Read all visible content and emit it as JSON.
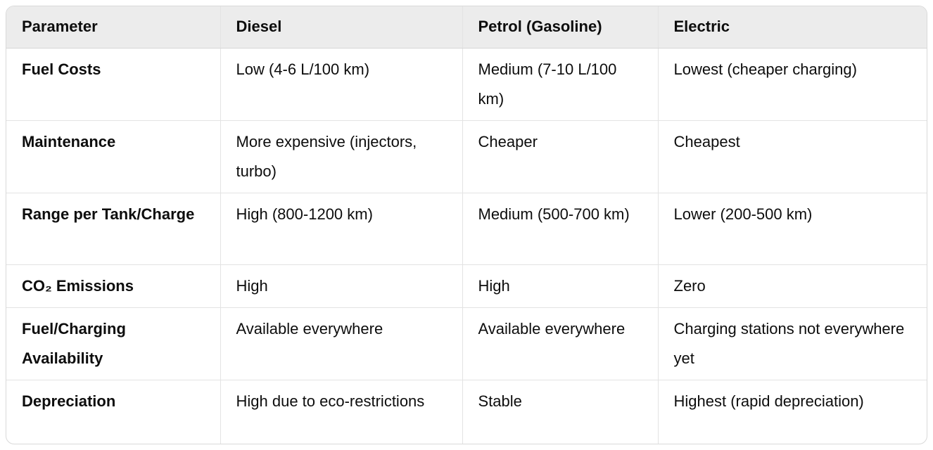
{
  "table": {
    "headers": [
      "Parameter",
      "Diesel",
      "Petrol (Gasoline)",
      "Electric"
    ],
    "rows": [
      [
        "Fuel Costs",
        "Low (4-6 L/100 km)",
        "Medium (7-10 L/100 km)",
        "Lowest (cheaper charging)"
      ],
      [
        "Maintenance",
        "More expensive (injectors, turbo)",
        "Cheaper",
        "Cheapest"
      ],
      [
        "Range per Tank/Charge",
        "High (800-1200 km)",
        "Medium (500-700 km)",
        "Lower (200-500 km)"
      ],
      [
        "CO₂ Emissions",
        "High",
        "High",
        "Zero"
      ],
      [
        "Fuel/Charging Availability",
        "Available everywhere",
        "Available everywhere",
        "Charging stations not everywhere yet"
      ],
      [
        "Depreciation",
        "High due to eco-restrictions",
        "Stable",
        "Highest (rapid depreciation)"
      ]
    ]
  }
}
